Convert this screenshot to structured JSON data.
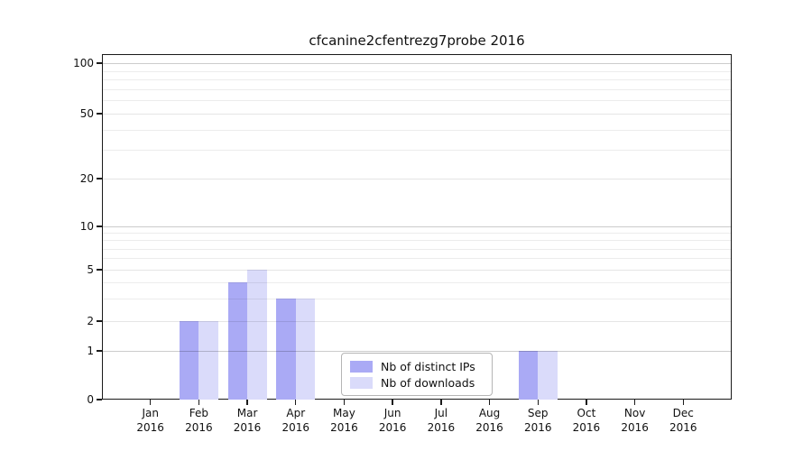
{
  "title": "cfcanine2cfentrezg7probe 2016",
  "chart_data": {
    "type": "bar",
    "title": "cfcanine2cfentrezg7probe 2016",
    "categories": [
      "Jan",
      "Feb",
      "Mar",
      "Apr",
      "May",
      "Jun",
      "Jul",
      "Aug",
      "Sep",
      "Oct",
      "Nov",
      "Dec"
    ],
    "category_year": "2016",
    "series": [
      {
        "name": "Nb of distinct IPs",
        "color": "#aaaaf5",
        "values": [
          0,
          2,
          4,
          3,
          0,
          0,
          0,
          0,
          1,
          0,
          0,
          0
        ]
      },
      {
        "name": "Nb of downloads",
        "color": "#dadbfa",
        "values": [
          0,
          2,
          5,
          3,
          0,
          0,
          0,
          0,
          1,
          0,
          0,
          0
        ]
      }
    ],
    "y_ticks": [
      0,
      1,
      2,
      5,
      10,
      20,
      50,
      100
    ],
    "ylim": [
      0,
      113
    ],
    "scale": "log-like above 1, linear 0-1",
    "grid": "horizontal, minor log lines, darker lines at decades",
    "legend_position": "bottom-center",
    "xlabel": "",
    "ylabel": ""
  },
  "legend": {
    "items": [
      {
        "label": "Nb of distinct IPs",
        "color": "#aaaaf5"
      },
      {
        "label": "Nb of downloads",
        "color": "#dadbfa"
      }
    ]
  },
  "colors": {
    "background": "#ffffff",
    "axis": "#1a1a1a",
    "major_grid": "#cccccc",
    "minor_grid": "#ececec"
  }
}
